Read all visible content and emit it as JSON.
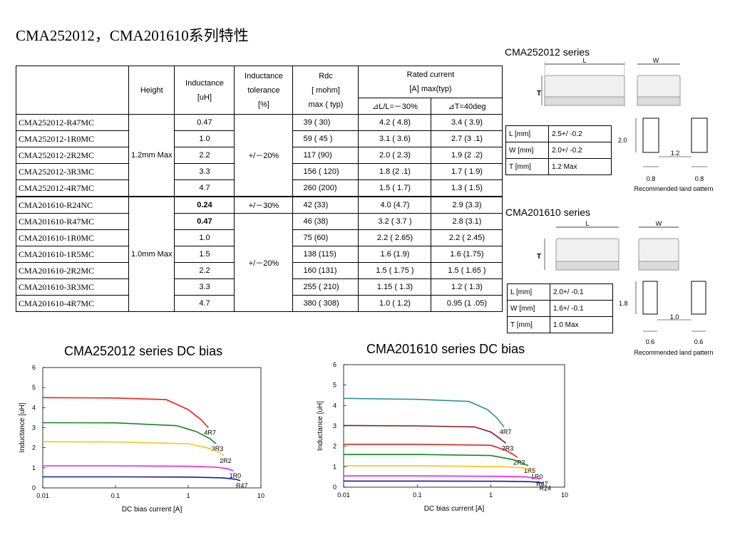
{
  "page_title": "CMA252012，CMA201610系列特性",
  "table": {
    "headers": {
      "height": "Height",
      "inductance_l1": "Inductance",
      "inductance_l2": "[uH]",
      "tolerance_l1": "Inductance",
      "tolerance_l2": "tolerance",
      "tolerance_l3": "[%]",
      "rdc_l1": "Rdc",
      "rdc_l2": "[ mohm]",
      "rdc_l3": "max ( typ)",
      "rated_l1": "Rated current",
      "rated_l2": "[A]   max(typ)",
      "dl": "⊿L/L=－30%",
      "dt": "⊿T=40deg"
    },
    "group1": {
      "height": "1.2mm Max",
      "tolerance": "+/－20%",
      "rows": [
        {
          "pn": "CMA252012-R47MC",
          "ind": "0.47",
          "rdc": "39 ( 30)",
          "dl": "4.2 ( 4.8)",
          "dt": "3.4 ( 3.9)"
        },
        {
          "pn": "CMA252012-1R0MC",
          "ind": "1.0",
          "rdc": "59 ( 45 )",
          "dl": "3.1 ( 3.6)",
          "dt": "2.7 (3 .1)"
        },
        {
          "pn": "CMA252012-2R2MC",
          "ind": "2.2",
          "rdc": "117 (90)",
          "dl": "2.0 ( 2.3)",
          "dt": "1.9 (2 .2)"
        },
        {
          "pn": "CMA252012-3R3MC",
          "ind": "3.3",
          "rdc": "156 (  120)",
          "dl": "1.8 (2 .1)",
          "dt": "1.7 ( 1.9)"
        },
        {
          "pn": "CMA252012-4R7MC",
          "ind": "4.7",
          "rdc": "260 (200)",
          "dl": "1.5 ( 1.7)",
          "dt": "1.3 ( 1.5)"
        }
      ]
    },
    "group2": {
      "height": "1.0mm Max",
      "tolerance_first": "+/－30%",
      "tolerance": "+/－20%",
      "rows": [
        {
          "pn": "CMA201610-R24NC",
          "ind": "0.24",
          "rdc": "42 (33)",
          "dl": "4.0 (4.7)",
          "dt": "2.9 (3.3)"
        },
        {
          "pn": "CMA201610-R47MC",
          "ind": "0.47",
          "rdc": "46 (38)",
          "dl": "3.2 ( 3.7 )",
          "dt": "2.8 (3.1)"
        },
        {
          "pn": "CMA201610-1R0MC",
          "ind": "1.0",
          "rdc": "75 (60)",
          "dl": "2.2 ( 2.65)",
          "dt": "2.2 ( 2.45)"
        },
        {
          "pn": "CMA201610-1R5MC",
          "ind": "1.5",
          "rdc": "138 (115)",
          "dl": "1.6 (1.9)",
          "dt": "1.6 (1.75)"
        },
        {
          "pn": "CMA201610-2R2MC",
          "ind": "2.2",
          "rdc": "160 (131)",
          "dl": "1.5 ( 1.75 )",
          "dt": "1.5 ( 1.65 )"
        },
        {
          "pn": "CMA201610-3R3MC",
          "ind": "3.3",
          "rdc": "255 (  210)",
          "dl": "1.15 ( 1.3)",
          "dt": "1.2 ( 1.3)"
        },
        {
          "pn": "CMA201610-4R7MC",
          "ind": "4.7",
          "rdc": "380 ( 308)",
          "dl": "1.0 ( 1.2)",
          "dt": "0.95 (1 .05)"
        }
      ]
    }
  },
  "series1": {
    "label": "CMA252012  series",
    "l_label": "L",
    "w_label": "W",
    "t_label": "T",
    "dims": [
      {
        "k": "L [mm]",
        "v": "2.5+/ -0.2"
      },
      {
        "k": "W [mm]",
        "v": "2.0+/ -0.2"
      },
      {
        "k": "T [mm]",
        "v": "1.2 Max"
      }
    ],
    "land": {
      "h": "2.0",
      "gap": "1.2",
      "w1": "0.8",
      "w2": "0.8",
      "caption": "Recommended land   pattern"
    }
  },
  "series2": {
    "label": "CMA201610  series",
    "l_label": "L",
    "w_label": "W",
    "t_label": "T",
    "dims": [
      {
        "k": "L [mm]",
        "v": "2.0+/ -0.1"
      },
      {
        "k": "W [mm]",
        "v": "1.6+/ -0.1"
      },
      {
        "k": "T [mm]",
        "v": "1.0 Max"
      }
    ],
    "land": {
      "h": "1.8",
      "gap": "1.0",
      "w1": "0.6",
      "w2": "0.6",
      "caption": "Recommended land   pattern"
    }
  },
  "chart_data": [
    {
      "type": "line",
      "title": "CMA252012 series DC bias",
      "xlabel": "DC bias current [A]",
      "ylabel": "Inductance [uH]",
      "xscale": "log",
      "xlim": [
        0.01,
        10
      ],
      "ylim": [
        0,
        6
      ],
      "xticks": [
        "0.01",
        "0.1",
        "1",
        "10"
      ],
      "yticks": [
        "0",
        "1",
        "2",
        "3",
        "4",
        "5",
        "6"
      ],
      "grid": false,
      "series": [
        {
          "name": "4R7",
          "color": "#e8201b",
          "points": [
            [
              0.01,
              4.5
            ],
            [
              0.1,
              4.48
            ],
            [
              0.5,
              4.4
            ],
            [
              1.0,
              3.9
            ],
            [
              1.5,
              3.4
            ],
            [
              1.9,
              3.0
            ]
          ]
        },
        {
          "name": "3R3",
          "color": "#0f8a20",
          "points": [
            [
              0.01,
              3.25
            ],
            [
              0.1,
              3.24
            ],
            [
              0.7,
              3.1
            ],
            [
              1.3,
              2.8
            ],
            [
              2.0,
              2.45
            ],
            [
              2.4,
              2.2
            ]
          ]
        },
        {
          "name": "2R2",
          "color": "#f8c21a",
          "points": [
            [
              0.01,
              2.3
            ],
            [
              0.1,
              2.29
            ],
            [
              1.0,
              2.2
            ],
            [
              1.8,
              2.0
            ],
            [
              2.6,
              1.8
            ],
            [
              3.1,
              1.6
            ]
          ]
        },
        {
          "name": "1R0",
          "color": "#f01ee8",
          "points": [
            [
              0.01,
              1.1
            ],
            [
              0.1,
              1.1
            ],
            [
              1.0,
              1.08
            ],
            [
              2.5,
              1.03
            ],
            [
              3.5,
              0.95
            ],
            [
              4.2,
              0.85
            ]
          ]
        },
        {
          "name": "R47",
          "color": "#102090",
          "points": [
            [
              0.01,
              0.55
            ],
            [
              0.1,
              0.55
            ],
            [
              1.0,
              0.54
            ],
            [
              3.0,
              0.5
            ],
            [
              4.5,
              0.43
            ],
            [
              5.2,
              0.36
            ]
          ]
        }
      ]
    },
    {
      "type": "line",
      "title": "CMA201610 series DC bias",
      "xlabel": "DC bias current [A]",
      "ylabel": "Inductance [uH]",
      "xscale": "log",
      "xlim": [
        0.01,
        10
      ],
      "ylim": [
        0,
        6
      ],
      "xticks": [
        "0.01",
        "0.1",
        "1",
        "10"
      ],
      "yticks": [
        "0",
        "1",
        "2",
        "3",
        "4",
        "5",
        "6"
      ],
      "grid": false,
      "series": [
        {
          "name": "4R7",
          "color": "#3090a0",
          "points": [
            [
              0.01,
              4.35
            ],
            [
              0.1,
              4.3
            ],
            [
              0.5,
              4.2
            ],
            [
              0.9,
              3.8
            ],
            [
              1.2,
              3.4
            ],
            [
              1.5,
              2.95
            ]
          ]
        },
        {
          "name": "3R3",
          "color": "#8b1a1a",
          "points": [
            [
              0.01,
              3.02
            ],
            [
              0.1,
              3.0
            ],
            [
              0.6,
              2.95
            ],
            [
              1.0,
              2.7
            ],
            [
              1.3,
              2.4
            ],
            [
              1.6,
              2.15
            ]
          ]
        },
        {
          "name": "2R2",
          "color": "#e8201b",
          "points": [
            [
              0.01,
              2.1
            ],
            [
              0.1,
              2.1
            ],
            [
              1.0,
              2.05
            ],
            [
              1.6,
              1.8
            ],
            [
              2.0,
              1.6
            ],
            [
              2.3,
              1.45
            ]
          ]
        },
        {
          "name": "1R5",
          "color": "#0f8a20",
          "points": [
            [
              0.01,
              1.6
            ],
            [
              0.1,
              1.6
            ],
            [
              1.0,
              1.55
            ],
            [
              2.0,
              1.35
            ],
            [
              2.8,
              1.15
            ],
            [
              3.2,
              1.05
            ]
          ]
        },
        {
          "name": "1R0",
          "color": "#f8c21a",
          "points": [
            [
              0.01,
              1.05
            ],
            [
              0.1,
              1.05
            ],
            [
              1.5,
              1.0
            ],
            [
              2.7,
              0.95
            ],
            [
              3.5,
              0.85
            ],
            [
              4.0,
              0.75
            ]
          ]
        },
        {
          "name": "R47",
          "color": "#f01ee8",
          "points": [
            [
              0.01,
              0.55
            ],
            [
              0.1,
              0.55
            ],
            [
              1.5,
              0.53
            ],
            [
              3.0,
              0.5
            ],
            [
              4.0,
              0.45
            ],
            [
              4.7,
              0.4
            ]
          ]
        },
        {
          "name": "R24",
          "color": "#102090",
          "points": [
            [
              0.01,
              0.3
            ],
            [
              0.1,
              0.3
            ],
            [
              1.5,
              0.29
            ],
            [
              3.5,
              0.27
            ],
            [
              4.8,
              0.22
            ],
            [
              5.2,
              0.2
            ]
          ]
        }
      ]
    }
  ]
}
